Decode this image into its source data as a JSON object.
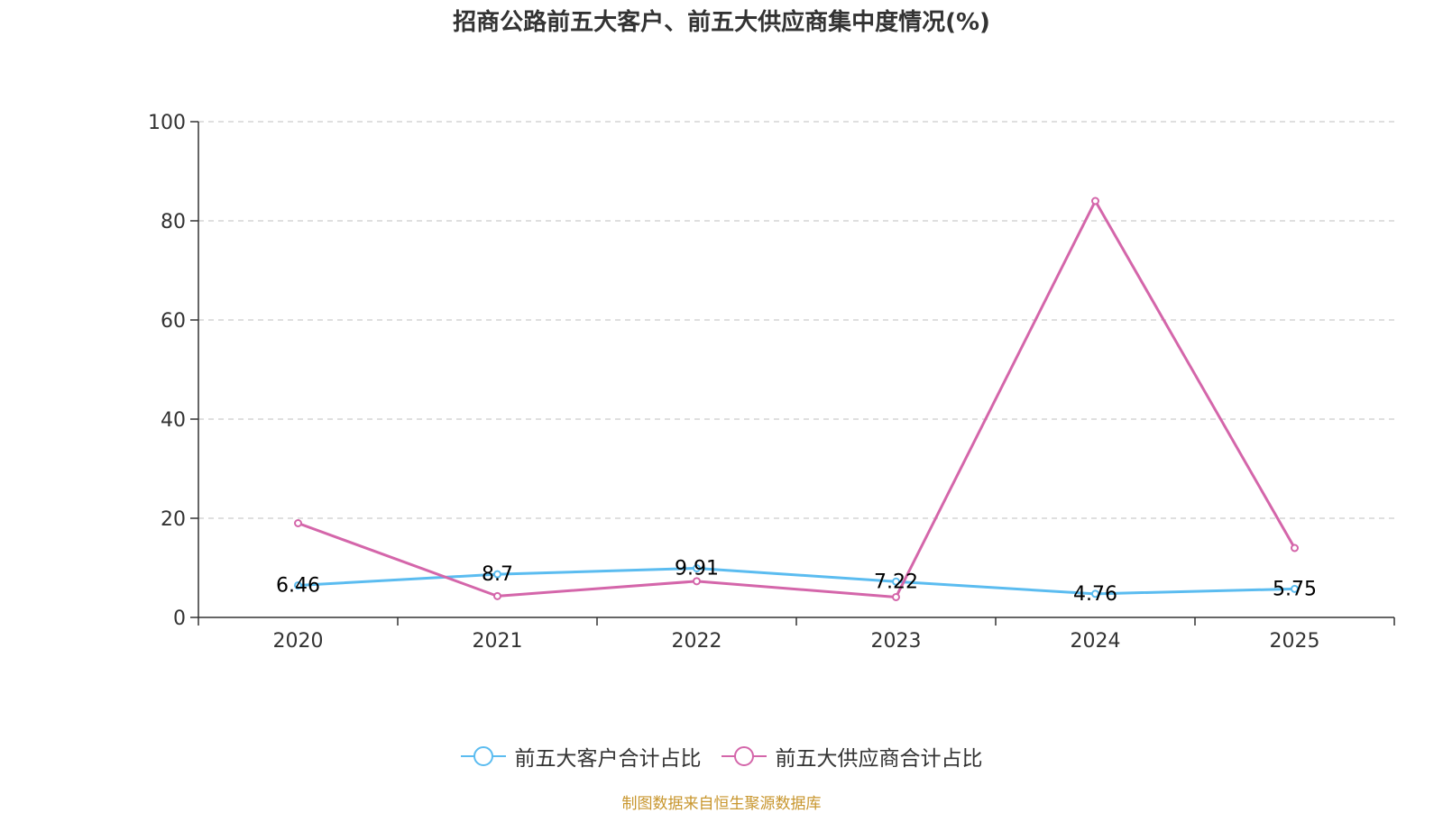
{
  "chart_data": {
    "type": "line",
    "title": "招商公路前五大客户、前五大供应商集中度情况(%)",
    "categories": [
      "2020",
      "2021",
      "2022",
      "2023",
      "2024",
      "2025"
    ],
    "series": [
      {
        "name": "前五大客户合计占比",
        "color": "#5bbcf0",
        "values": [
          6.46,
          8.7,
          9.91,
          7.22,
          4.76,
          5.75
        ],
        "value_labels": [
          "6.46",
          "8.7",
          "9.91",
          "7.22",
          "4.76",
          "5.75"
        ]
      },
      {
        "name": "前五大供应商合计占比",
        "color": "#d466aa",
        "values": [
          19.0,
          4.3,
          7.3,
          4.1,
          84.0,
          14.0
        ]
      }
    ],
    "yticks": [
      "0",
      "20",
      "40",
      "60",
      "80",
      "100"
    ],
    "ylim": [
      0,
      100
    ],
    "grid": true,
    "legend": "bottom-center"
  },
  "source_note": "制图数据来自恒生聚源数据库"
}
